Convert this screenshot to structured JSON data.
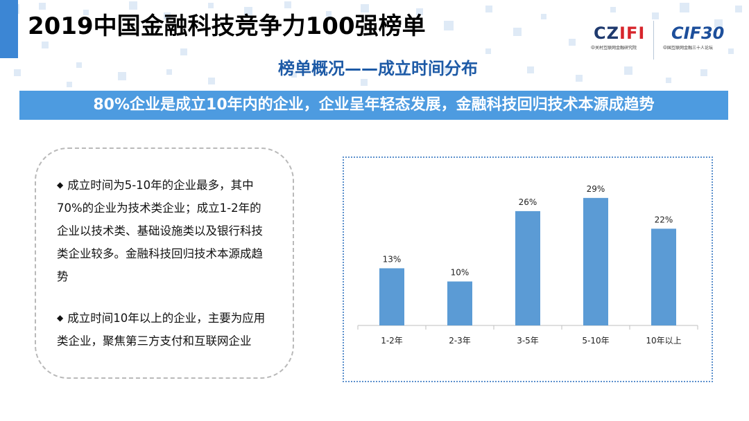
{
  "header": {
    "title": "2019中国金融科技竞争力100强榜单",
    "subtitle": "榜单概况——成立时间分布",
    "logo_left_text_a": "CZ",
    "logo_left_text_b": "IFI",
    "logo_left_caption": "中关村互联网金融研究院",
    "logo_right_text": "CIF30",
    "logo_right_caption": "中国互联网金融三十人论坛"
  },
  "banner": {
    "text": "80%企业是成立10年内的企业，企业呈年轻态发展，金融科技回归技术本源成趋势"
  },
  "notes": {
    "bullet_mark": "◆",
    "items": [
      "成立时间为5-10年的企业最多，其中70%的企业为技术类企业；成立1-2年的企业以技术类、基础设施类以及银行科技类企业较多。金融科技回归技术本源成趋势",
      "成立时间10年以上的企业，主要为应用类企业，聚焦第三方支付和互联网企业"
    ]
  },
  "chart_data": {
    "type": "bar",
    "categories": [
      "1-2年",
      "2-3年",
      "3-5年",
      "5-10年",
      "10年以上"
    ],
    "values": [
      13,
      10,
      26,
      29,
      22
    ],
    "value_labels": [
      "13%",
      "10%",
      "26%",
      "29%",
      "22%"
    ],
    "title": "",
    "xlabel": "",
    "ylabel": "",
    "ylim": [
      0,
      30
    ],
    "grid": false,
    "legend": "none",
    "bar_color": "#5b9bd5"
  }
}
